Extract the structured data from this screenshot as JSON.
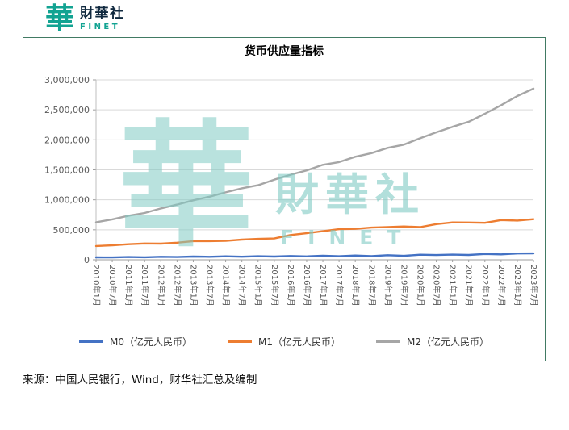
{
  "logo": {
    "glyph": "華",
    "name_cn": "財華社",
    "name_en": "FINET"
  },
  "watermark": {
    "glyph": "華",
    "name_cn": "財華社",
    "name_en": "FINET"
  },
  "source": "来源：中国人民银行，Wind，财华社汇总及编制",
  "chart_data": {
    "type": "line",
    "title": "货币供应量指标",
    "xlabel": "",
    "ylabel": "",
    "ylim": [
      0,
      3000000
    ],
    "ytick": 500000,
    "grid": "horizontal",
    "legend_position": "bottom",
    "categories": [
      "2010年1月",
      "2010年7月",
      "2011年1月",
      "2011年7月",
      "2012年1月",
      "2012年7月",
      "2013年1月",
      "2013年7月",
      "2014年1月",
      "2014年7月",
      "2015年1月",
      "2015年7月",
      "2016年1月",
      "2016年7月",
      "2017年1月",
      "2017年7月",
      "2018年1月",
      "2018年7月",
      "2019年1月",
      "2019年7月",
      "2020年1月",
      "2020年7月",
      "2021年1月",
      "2021年7月",
      "2022年1月",
      "2022年7月",
      "2023年1月",
      "2023年7月"
    ],
    "series": [
      {
        "name": "M0（亿元人民币）",
        "color": "#4472c4",
        "values": [
          40800,
          39000,
          45600,
          42300,
          49500,
          45600,
          53400,
          49200,
          58000,
          51500,
          59200,
          53900,
          63600,
          56400,
          69000,
          59500,
          71000,
          62500,
          77000,
          65800,
          84300,
          79000,
          86200,
          80800,
          96200,
          90600,
          104600,
          106100
        ]
      },
      {
        "name": "M1（亿元人民币）",
        "color": "#ed7d31",
        "values": [
          229600,
          240600,
          260200,
          271100,
          269700,
          285800,
          311200,
          311000,
          314900,
          336200,
          348100,
          355400,
          413000,
          442900,
          476700,
          510500,
          515200,
          536600,
          545600,
          555800,
          545000,
          594000,
          622600,
          621700,
          616400,
          661800,
          653500,
          677200
        ]
      },
      {
        "name": "M2（亿元人民币）",
        "color": "#a6a6a6",
        "values": [
          625600,
          674000,
          734000,
          780800,
          855900,
          919600,
          992100,
          1051900,
          1124300,
          1192100,
          1243000,
          1336400,
          1417500,
          1490200,
          1583600,
          1629000,
          1718600,
          1779000,
          1865900,
          1919400,
          2026500,
          2125500,
          2217000,
          2302200,
          2434500,
          2578100,
          2731300,
          2853700
        ]
      }
    ]
  }
}
